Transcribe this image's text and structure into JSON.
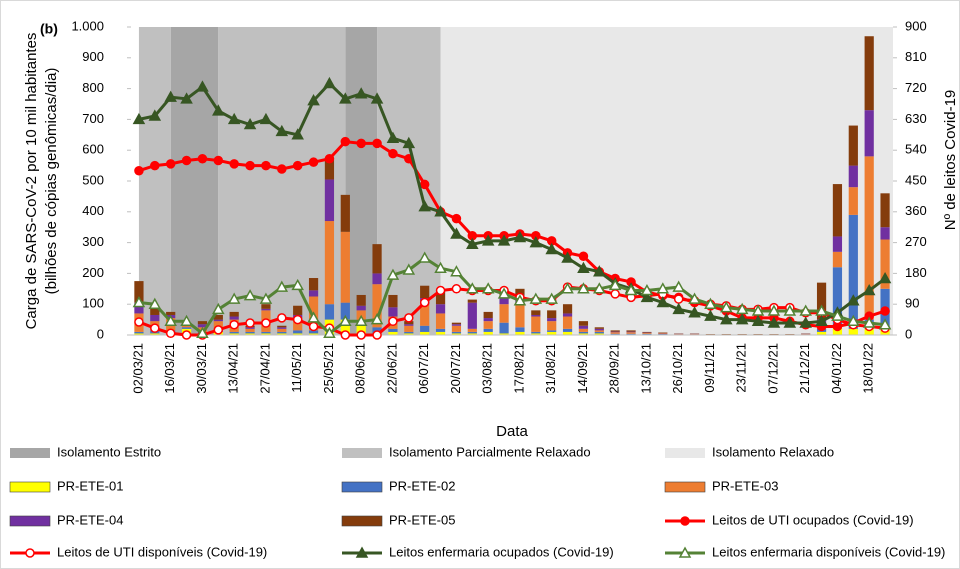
{
  "chart_data": {
    "type": "bar-line",
    "annotation": "(b)",
    "ylabel": [
      "Carga de SARS-CoV-2 por 10 mil habitantes",
      "(bilhões de cópias genômicas/dia)"
    ],
    "y2label": "Nº de leitos Covid-19",
    "xlabel": "Data",
    "categories": [
      "02/03/21",
      null,
      "16/03/21",
      null,
      "30/03/21",
      null,
      "13/04/21",
      null,
      "27/04/21",
      null,
      "11/05/21",
      null,
      "25/05/21",
      null,
      "08/06/21",
      null,
      "22/06/21",
      null,
      "06/07/21",
      null,
      "20/07/21",
      null,
      "03/08/21",
      null,
      "17/08/21",
      null,
      "31/08/21",
      null,
      "14/09/21",
      null,
      "28/09/21",
      null,
      "13/10/21",
      null,
      "26/10/21",
      null,
      "09/11/21",
      null,
      "23/11/21",
      null,
      "07/12/21",
      null,
      "21/12/21",
      null,
      "04/01/22",
      null,
      "18/01/22",
      null
    ],
    "ylim": [
      0,
      1000
    ],
    "yticks": [
      0,
      100,
      200,
      300,
      400,
      500,
      600,
      700,
      800,
      900,
      {
        "value": 1000,
        "label": "1.000"
      }
    ],
    "y2lim": [
      0,
      900
    ],
    "y2ticks": [
      0,
      90,
      180,
      270,
      360,
      450,
      540,
      630,
      720,
      810,
      900
    ],
    "bands": [
      {
        "name": "Isolamento Estrito",
        "color": "#a6a6a6",
        "ranges": [
          [
            2,
            5
          ],
          [
            13,
            15
          ]
        ]
      },
      {
        "name": "Isolamento Parcialmente Relaxado",
        "color": "#c0c0c0",
        "ranges": [
          [
            0,
            2
          ],
          [
            5,
            13
          ],
          [
            15,
            19
          ]
        ]
      },
      {
        "name": "Isolamento Relaxado",
        "color": "#e8e8e8",
        "ranges": [
          [
            19,
            47.5
          ]
        ]
      }
    ],
    "series": [
      {
        "name": "PR-ETE-01",
        "type": "bar",
        "color": "#ffff00",
        "values": [
          5,
          5,
          5,
          20,
          5,
          10,
          5,
          5,
          5,
          5,
          5,
          5,
          50,
          50,
          30,
          5,
          10,
          5,
          10,
          10,
          5,
          5,
          10,
          5,
          10,
          5,
          10,
          10,
          5,
          5,
          2,
          2,
          2,
          1,
          1,
          1,
          0,
          0,
          0,
          0,
          0,
          0,
          1,
          10,
          30,
          20,
          20,
          20
        ]
      },
      {
        "name": "PR-ETE-02",
        "type": "bar",
        "color": "#4472c4",
        "values": [
          5,
          10,
          10,
          5,
          5,
          5,
          5,
          5,
          5,
          5,
          10,
          10,
          50,
          55,
          10,
          20,
          10,
          5,
          20,
          10,
          5,
          5,
          10,
          35,
          15,
          5,
          5,
          10,
          5,
          5,
          2,
          2,
          2,
          2,
          1,
          1,
          1,
          1,
          1,
          1,
          1,
          1,
          1,
          10,
          190,
          370,
          30,
          130
        ]
      },
      {
        "name": "PR-ETE-03",
        "type": "bar",
        "color": "#ed7d31",
        "values": [
          60,
          30,
          40,
          10,
          15,
          30,
          40,
          10,
          70,
          10,
          40,
          110,
          270,
          230,
          40,
          140,
          40,
          20,
          70,
          50,
          20,
          10,
          25,
          60,
          80,
          50,
          30,
          40,
          10,
          5,
          5,
          5,
          3,
          2,
          1,
          1,
          1,
          1,
          1,
          1,
          1,
          1,
          1,
          20,
          50,
          90,
          530,
          160
        ]
      },
      {
        "name": "PR-ETE-04",
        "type": "bar",
        "color": "#7030a0",
        "values": [
          35,
          20,
          10,
          0,
          10,
          5,
          10,
          5,
          5,
          5,
          10,
          20,
          135,
          0,
          15,
          35,
          30,
          5,
          20,
          30,
          5,
          85,
          10,
          25,
          25,
          5,
          10,
          10,
          10,
          5,
          2,
          2,
          1,
          1,
          1,
          1,
          0,
          0,
          0,
          0,
          0,
          0,
          1,
          10,
          50,
          70,
          150,
          40
        ]
      },
      {
        "name": "PR-ETE-05",
        "type": "bar",
        "color": "#843c0c",
        "values": [
          70,
          20,
          10,
          5,
          10,
          15,
          15,
          5,
          15,
          5,
          30,
          40,
          70,
          120,
          35,
          95,
          40,
          10,
          40,
          50,
          5,
          10,
          20,
          20,
          20,
          15,
          25,
          30,
          15,
          5,
          4,
          4,
          2,
          2,
          1,
          1,
          1,
          1,
          1,
          1,
          1,
          1,
          1,
          120,
          170,
          130,
          240,
          110
        ]
      },
      {
        "name": "Leitos de UTI ocupados (Covid-19)",
        "type": "line",
        "axis": "y2",
        "color": "#ff0000",
        "marker": "circle",
        "filled": true,
        "values": [
          480,
          495,
          500,
          510,
          515,
          510,
          500,
          495,
          495,
          485,
          495,
          505,
          515,
          565,
          560,
          560,
          530,
          515,
          440,
          360,
          340,
          290,
          290,
          290,
          295,
          290,
          275,
          240,
          230,
          185,
          165,
          155,
          125,
          115,
          110,
          95,
          85,
          70,
          50,
          50,
          50,
          40,
          30,
          25,
          25,
          35,
          55,
          70
        ]
      },
      {
        "name": "Leitos de UTI disponíveis (Covid-19)",
        "type": "line",
        "axis": "y2",
        "color": "#ff0000",
        "marker": "circle",
        "filled": false,
        "values": [
          38,
          20,
          5,
          0,
          0,
          15,
          30,
          35,
          35,
          50,
          45,
          25,
          20,
          0,
          0,
          0,
          40,
          50,
          95,
          130,
          135,
          130,
          130,
          130,
          110,
          100,
          100,
          140,
          135,
          130,
          120,
          110,
          115,
          120,
          105,
          100,
          90,
          85,
          75,
          75,
          80,
          80,
          65,
          65,
          45,
          30,
          25,
          20
        ]
      },
      {
        "name": "Leitos enfermaria ocupados (Covid-19)",
        "type": "line",
        "axis": "y2",
        "color": "#375623",
        "marker": "triangle",
        "filled": true,
        "values": [
          630,
          640,
          695,
          690,
          725,
          655,
          630,
          615,
          630,
          595,
          585,
          685,
          735,
          690,
          705,
          690,
          575,
          560,
          375,
          360,
          295,
          265,
          275,
          275,
          285,
          270,
          250,
          225,
          195,
          185,
          150,
          135,
          110,
          95,
          75,
          65,
          55,
          45,
          45,
          40,
          35,
          35,
          35,
          40,
          65,
          100,
          130,
          165
        ]
      },
      {
        "name": "Leitos enfermaria disponíveis (Covid-19)",
        "type": "line",
        "axis": "y2",
        "color": "#548235",
        "marker": "triangle",
        "filled": false,
        "values": [
          95,
          90,
          40,
          40,
          5,
          75,
          105,
          115,
          105,
          140,
          145,
          50,
          5,
          40,
          40,
          45,
          175,
          190,
          225,
          195,
          185,
          135,
          135,
          120,
          100,
          105,
          105,
          135,
          135,
          135,
          145,
          130,
          130,
          135,
          140,
          105,
          90,
          80,
          75,
          70,
          70,
          70,
          70,
          70,
          55,
          40,
          35,
          30
        ]
      }
    ]
  }
}
